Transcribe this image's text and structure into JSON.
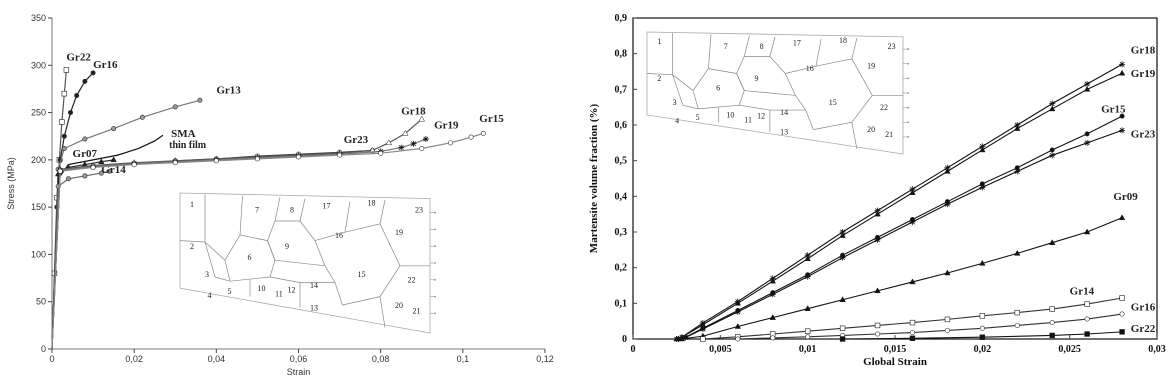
{
  "chart_data": [
    {
      "type": "line",
      "xlabel": "Strain",
      "ylabel": "Stress (MPa)",
      "xlim": [
        0,
        0.12
      ],
      "ylim": [
        0,
        350
      ],
      "x_ticks": [
        "0",
        "0,02",
        "0,04",
        "0,06",
        "0,08",
        "0,1",
        "0,12"
      ],
      "y_ticks": [
        "0",
        "50",
        "100",
        "150",
        "200",
        "250",
        "300",
        "350"
      ],
      "grid": false,
      "series": [
        {
          "name": "Gr22",
          "label_at": [
            0.0035,
            305
          ],
          "points": [
            [
              0,
              0
            ],
            [
              0.0006,
              80
            ],
            [
              0.0012,
              160
            ],
            [
              0.0018,
              200
            ],
            [
              0.0024,
              240
            ],
            [
              0.003,
              270
            ],
            [
              0.0035,
              295
            ]
          ]
        },
        {
          "name": "Gr16",
          "label_at": [
            0.01,
            297
          ],
          "points": [
            [
              0,
              0
            ],
            [
              0.0012,
              150
            ],
            [
              0.002,
              200
            ],
            [
              0.003,
              225
            ],
            [
              0.0045,
              250
            ],
            [
              0.006,
              268
            ],
            [
              0.008,
              283
            ],
            [
              0.01,
              292
            ]
          ]
        },
        {
          "name": "Gr13",
          "label_at": [
            0.04,
            270
          ],
          "points": [
            [
              0,
              0
            ],
            [
              0.0015,
              190
            ],
            [
              0.003,
              212
            ],
            [
              0.008,
              222
            ],
            [
              0.015,
              233
            ],
            [
              0.022,
              245
            ],
            [
              0.03,
              256
            ],
            [
              0.036,
              263
            ]
          ]
        },
        {
          "name": "SMA thin film",
          "label_at": [
            0.029,
            224
          ],
          "points": [
            [
              0,
              0
            ],
            [
              0.0015,
              180
            ],
            [
              0.004,
              195
            ],
            [
              0.01,
              200
            ],
            [
              0.016,
              205
            ],
            [
              0.021,
              212
            ],
            [
              0.025,
              220
            ],
            [
              0.027,
              226
            ]
          ]
        },
        {
          "name": "Gr07",
          "label_at": [
            0.005,
            203
          ],
          "points": [
            [
              0,
              0
            ],
            [
              0.0015,
              185
            ],
            [
              0.004,
              192
            ],
            [
              0.008,
              195
            ],
            [
              0.012,
              198
            ],
            [
              0.015,
              200
            ]
          ]
        },
        {
          "name": "Gr14",
          "label_at": [
            0.012,
            186
          ],
          "points": [
            [
              0,
              0
            ],
            [
              0.0015,
              172
            ],
            [
              0.004,
              180
            ],
            [
              0.008,
              183
            ],
            [
              0.012,
              186
            ],
            [
              0.014,
              188
            ]
          ]
        },
        {
          "name": "Gr23",
          "label_at": [
            0.071,
            218
          ],
          "points": [
            [
              0,
              0
            ],
            [
              0.002,
              188
            ],
            [
              0.01,
              193
            ],
            [
              0.02,
              196
            ],
            [
              0.03,
              199
            ],
            [
              0.04,
              201
            ],
            [
              0.05,
              204
            ],
            [
              0.06,
              206
            ],
            [
              0.07,
              208
            ],
            [
              0.078,
              210
            ]
          ]
        },
        {
          "name": "Gr18",
          "label_at": [
            0.085,
            248
          ],
          "points": [
            [
              0,
              0
            ],
            [
              0.002,
              190
            ],
            [
              0.01,
              194
            ],
            [
              0.02,
              197
            ],
            [
              0.03,
              199
            ],
            [
              0.04,
              201
            ],
            [
              0.05,
              203
            ],
            [
              0.06,
              205
            ],
            [
              0.07,
              207
            ],
            [
              0.078,
              210
            ],
            [
              0.082,
              218
            ],
            [
              0.086,
              228
            ],
            [
              0.09,
              243
            ]
          ]
        },
        {
          "name": "Gr19",
          "label_at": [
            0.093,
            233
          ],
          "points": [
            [
              0,
              0
            ],
            [
              0.002,
              189
            ],
            [
              0.01,
              193
            ],
            [
              0.02,
              196
            ],
            [
              0.03,
              198
            ],
            [
              0.04,
              200
            ],
            [
              0.05,
              202
            ],
            [
              0.06,
              204
            ],
            [
              0.07,
              206
            ],
            [
              0.08,
              209
            ],
            [
              0.085,
              213
            ],
            [
              0.088,
              217
            ],
            [
              0.091,
              222
            ]
          ]
        },
        {
          "name": "Gr15",
          "label_at": [
            0.104,
            240
          ],
          "points": [
            [
              0,
              0
            ],
            [
              0.002,
              188
            ],
            [
              0.01,
              192
            ],
            [
              0.02,
              195
            ],
            [
              0.03,
              197
            ],
            [
              0.04,
              199
            ],
            [
              0.05,
              201
            ],
            [
              0.06,
              203
            ],
            [
              0.07,
              205
            ],
            [
              0.08,
              207
            ],
            [
              0.09,
              212
            ],
            [
              0.097,
              218
            ],
            [
              0.102,
              224
            ],
            [
              0.105,
              228
            ]
          ]
        }
      ],
      "inset_grain_labels": [
        "1",
        "2",
        "3",
        "4",
        "5",
        "6",
        "7",
        "8",
        "9",
        "10",
        "11",
        "12",
        "13",
        "14",
        "15",
        "16",
        "17",
        "18",
        "19",
        "20",
        "21",
        "22",
        "23"
      ]
    },
    {
      "type": "line",
      "xlabel": "Global Strain",
      "ylabel": "Martensite volume fraction (%)",
      "xlim": [
        0,
        0.03
      ],
      "ylim": [
        0,
        0.9
      ],
      "x_ticks": [
        "0",
        "0,005",
        "0,01",
        "0,015",
        "0,02",
        "0,025",
        "0,03"
      ],
      "y_ticks": [
        "0",
        "0,1",
        "0,2",
        "0,3",
        "0,4",
        "0,5",
        "0,6",
        "0,7",
        "0,8",
        "0,9"
      ],
      "grid": false,
      "series": [
        {
          "name": "Gr18",
          "label_at": [
            0.0285,
            0.8
          ],
          "points": [
            [
              0.0025,
              0
            ],
            [
              0.0028,
              0.005
            ],
            [
              0.004,
              0.045
            ],
            [
              0.006,
              0.105
            ],
            [
              0.008,
              0.17
            ],
            [
              0.01,
              0.235
            ],
            [
              0.012,
              0.3
            ],
            [
              0.014,
              0.36
            ],
            [
              0.016,
              0.42
            ],
            [
              0.018,
              0.48
            ],
            [
              0.02,
              0.54
            ],
            [
              0.022,
              0.6
            ],
            [
              0.024,
              0.66
            ],
            [
              0.026,
              0.715
            ],
            [
              0.028,
              0.77
            ]
          ]
        },
        {
          "name": "Gr19",
          "label_at": [
            0.0285,
            0.735
          ],
          "points": [
            [
              0.0025,
              0
            ],
            [
              0.0028,
              0.005
            ],
            [
              0.004,
              0.04
            ],
            [
              0.006,
              0.1
            ],
            [
              0.008,
              0.162
            ],
            [
              0.01,
              0.225
            ],
            [
              0.012,
              0.29
            ],
            [
              0.014,
              0.35
            ],
            [
              0.016,
              0.41
            ],
            [
              0.018,
              0.47
            ],
            [
              0.02,
              0.53
            ],
            [
              0.022,
              0.59
            ],
            [
              0.024,
              0.645
            ],
            [
              0.026,
              0.7
            ],
            [
              0.028,
              0.745
            ]
          ]
        },
        {
          "name": "Gr15",
          "label_at": [
            0.0268,
            0.635
          ],
          "points": [
            [
              0.0026,
              0
            ],
            [
              0.003,
              0.005
            ],
            [
              0.004,
              0.03
            ],
            [
              0.006,
              0.08
            ],
            [
              0.008,
              0.13
            ],
            [
              0.01,
              0.18
            ],
            [
              0.012,
              0.235
            ],
            [
              0.014,
              0.285
            ],
            [
              0.016,
              0.335
            ],
            [
              0.018,
              0.385
            ],
            [
              0.02,
              0.435
            ],
            [
              0.022,
              0.48
            ],
            [
              0.024,
              0.53
            ],
            [
              0.026,
              0.575
            ],
            [
              0.028,
              0.625
            ]
          ]
        },
        {
          "name": "Gr23",
          "label_at": [
            0.0285,
            0.565
          ],
          "points": [
            [
              0.0026,
              0
            ],
            [
              0.003,
              0.004
            ],
            [
              0.004,
              0.028
            ],
            [
              0.006,
              0.076
            ],
            [
              0.008,
              0.125
            ],
            [
              0.01,
              0.175
            ],
            [
              0.012,
              0.228
            ],
            [
              0.014,
              0.278
            ],
            [
              0.016,
              0.328
            ],
            [
              0.018,
              0.378
            ],
            [
              0.02,
              0.425
            ],
            [
              0.022,
              0.47
            ],
            [
              0.024,
              0.515
            ],
            [
              0.026,
              0.55
            ],
            [
              0.028,
              0.585
            ]
          ]
        },
        {
          "name": "Gr09",
          "label_at": [
            0.0275,
            0.39
          ],
          "points": [
            [
              0.0028,
              0
            ],
            [
              0.004,
              0.008
            ],
            [
              0.006,
              0.035
            ],
            [
              0.008,
              0.06
            ],
            [
              0.01,
              0.085
            ],
            [
              0.012,
              0.11
            ],
            [
              0.014,
              0.135
            ],
            [
              0.016,
              0.16
            ],
            [
              0.018,
              0.185
            ],
            [
              0.02,
              0.212
            ],
            [
              0.022,
              0.24
            ],
            [
              0.024,
              0.27
            ],
            [
              0.026,
              0.3
            ],
            [
              0.028,
              0.34
            ]
          ]
        },
        {
          "name": "Gr14",
          "label_at": [
            0.025,
            0.125
          ],
          "points": [
            [
              0.004,
              0
            ],
            [
              0.006,
              0.006
            ],
            [
              0.008,
              0.014
            ],
            [
              0.01,
              0.022
            ],
            [
              0.012,
              0.03
            ],
            [
              0.014,
              0.038
            ],
            [
              0.016,
              0.046
            ],
            [
              0.018,
              0.055
            ],
            [
              0.02,
              0.065
            ],
            [
              0.022,
              0.074
            ],
            [
              0.024,
              0.084
            ],
            [
              0.026,
              0.098
            ],
            [
              0.028,
              0.115
            ]
          ]
        },
        {
          "name": "Gr16",
          "label_at": [
            0.0285,
            0.08
          ],
          "points": [
            [
              0.006,
              0
            ],
            [
              0.008,
              0.003
            ],
            [
              0.01,
              0.006
            ],
            [
              0.012,
              0.01
            ],
            [
              0.014,
              0.014
            ],
            [
              0.016,
              0.018
            ],
            [
              0.018,
              0.024
            ],
            [
              0.02,
              0.03
            ],
            [
              0.022,
              0.038
            ],
            [
              0.024,
              0.046
            ],
            [
              0.026,
              0.056
            ],
            [
              0.028,
              0.07
            ]
          ]
        },
        {
          "name": "Gr22",
          "label_at": [
            0.0285,
            0.02
          ],
          "points": [
            [
              0.012,
              0
            ],
            [
              0.016,
              0.002
            ],
            [
              0.02,
              0.005
            ],
            [
              0.024,
              0.01
            ],
            [
              0.026,
              0.014
            ],
            [
              0.028,
              0.02
            ]
          ]
        }
      ],
      "inset_grain_labels": [
        "1",
        "2",
        "3",
        "4",
        "5",
        "6",
        "7",
        "8",
        "9",
        "10",
        "11",
        "12",
        "13",
        "14",
        "15",
        "16",
        "17",
        "18",
        "19",
        "20",
        "21",
        "22",
        "23"
      ]
    }
  ]
}
